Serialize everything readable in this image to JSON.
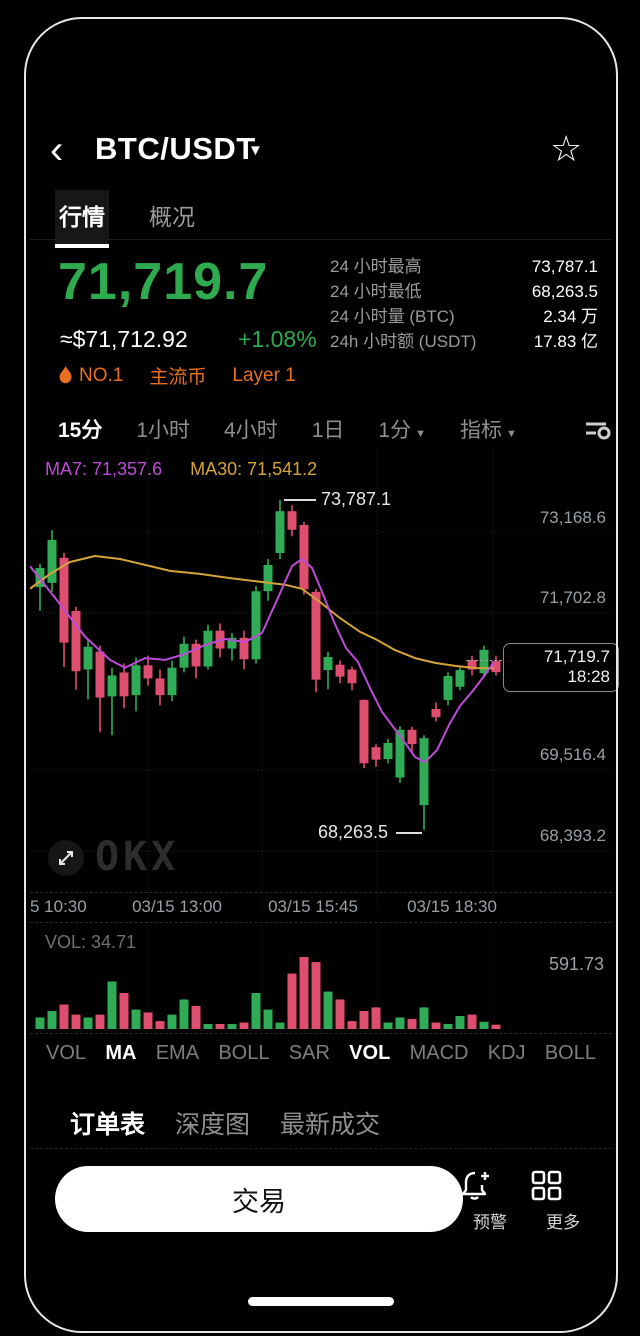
{
  "header": {
    "back_icon": "‹",
    "title": "BTC/USDT",
    "dropdown_icon": "▼",
    "star_icon": "☆"
  },
  "tabs": [
    {
      "label": "行情",
      "active": true
    },
    {
      "label": "概况",
      "active": false
    }
  ],
  "price": {
    "last": "71,719.7",
    "approx_usd": "≈$71,712.92",
    "change_pct": "+1.08%"
  },
  "stats": [
    {
      "label": "24 小时最高",
      "value": "73,787.1"
    },
    {
      "label": "24 小时最低",
      "value": "68,263.5"
    },
    {
      "label": "24 小时量 (BTC)",
      "value": "2.34 万"
    },
    {
      "label": "24h 小时额 (USDT)",
      "value": "17.83 亿"
    }
  ],
  "badges": [
    {
      "label": "NO.1"
    },
    {
      "label": "主流币"
    },
    {
      "label": "Layer 1"
    }
  ],
  "timeframes": [
    {
      "label": "15分",
      "active": true
    },
    {
      "label": "1小时",
      "active": false
    },
    {
      "label": "4小时",
      "active": false
    },
    {
      "label": "1日",
      "active": false
    },
    {
      "label": "1分",
      "active": false,
      "caret": true
    },
    {
      "label": "指标",
      "active": false,
      "caret": true
    }
  ],
  "chart_data": {
    "type": "candlestick",
    "interval": "15分",
    "ma7_label": "MA7: 71,357.6",
    "ma30_label": "MA30: 71,541.2",
    "high_annotation": "73,787.1",
    "low_annotation": "68,263.5",
    "price_tag": {
      "price": "71,719.7",
      "time": "18:28"
    },
    "y_ticks": [
      "73,168.6",
      "71,702.8",
      "69,516.4",
      "68,393.2"
    ],
    "x_ticks": [
      "5 10:30",
      "03/15 13:00",
      "03/15 15:45",
      "03/15 18:30"
    ],
    "watermark": "OKX",
    "colors": {
      "up": "#2FAC55",
      "down": "#DE4E6E",
      "ma7": "#BD4BD8",
      "ma30": "#D6A339",
      "grid": "#262b3a",
      "price_text": "#2EAB4F"
    },
    "y_map": {
      "p_ref": 73787.1,
      "y_ref": 50,
      "ppx": 16.74
    },
    "grid": {
      "vx": [
        118,
        232,
        347,
        463
      ],
      "hy": [
        82,
        163,
        320,
        401
      ]
    },
    "candles": [
      [
        72330,
        72720,
        71930,
        72650
      ],
      [
        72400,
        73280,
        72250,
        73120
      ],
      [
        72820,
        72900,
        70990,
        71400
      ],
      [
        71930,
        72000,
        70610,
        70920
      ],
      [
        70950,
        71450,
        70450,
        71330
      ],
      [
        71250,
        71350,
        69900,
        70480
      ],
      [
        70500,
        70980,
        69850,
        70850
      ],
      [
        70900,
        71050,
        70300,
        70500
      ],
      [
        70520,
        71150,
        70250,
        71020
      ],
      [
        71020,
        71180,
        70680,
        70800
      ],
      [
        70800,
        70950,
        70350,
        70520
      ],
      [
        70520,
        71100,
        70420,
        70980
      ],
      [
        70980,
        71500,
        70900,
        71380
      ],
      [
        71380,
        71450,
        70800,
        71000
      ],
      [
        71000,
        71700,
        70950,
        71600
      ],
      [
        71600,
        71720,
        71150,
        71300
      ],
      [
        71300,
        71560,
        71100,
        71480
      ],
      [
        71480,
        71600,
        70950,
        71120
      ],
      [
        71120,
        72350,
        71050,
        72260
      ],
      [
        72260,
        72800,
        72100,
        72700
      ],
      [
        72900,
        73787.1,
        72800,
        73600
      ],
      [
        73600,
        73700,
        73180,
        73290
      ],
      [
        73370,
        73420,
        72200,
        72290
      ],
      [
        72250,
        72300,
        70570,
        70780
      ],
      [
        70940,
        71250,
        70620,
        71160
      ],
      [
        71030,
        71100,
        70720,
        70830
      ],
      [
        70950,
        71000,
        70600,
        70720
      ],
      [
        70440,
        70450,
        69300,
        69380
      ],
      [
        69650,
        69700,
        69320,
        69440
      ],
      [
        69450,
        69790,
        69380,
        69720
      ],
      [
        69140,
        70000,
        69050,
        69940
      ],
      [
        69940,
        69990,
        69550,
        69700
      ],
      [
        68680,
        69850,
        68263.5,
        69800
      ],
      [
        70290,
        70400,
        70080,
        70150
      ],
      [
        70440,
        70900,
        70350,
        70840
      ],
      [
        70660,
        71000,
        70600,
        70940
      ],
      [
        71110,
        71180,
        70850,
        70950
      ],
      [
        70890,
        71350,
        70820,
        71280
      ],
      [
        71090,
        71180,
        70850,
        70905
      ]
    ],
    "ma7": [
      [
        0,
        72680
      ],
      [
        25,
        72150
      ],
      [
        55,
        71500
      ],
      [
        80,
        71110
      ],
      [
        95,
        70980
      ],
      [
        115,
        71140
      ],
      [
        135,
        71110
      ],
      [
        155,
        71210
      ],
      [
        175,
        71360
      ],
      [
        195,
        71460
      ],
      [
        215,
        71410
      ],
      [
        232,
        71560
      ],
      [
        248,
        72150
      ],
      [
        262,
        72680
      ],
      [
        272,
        72800
      ],
      [
        282,
        72650
      ],
      [
        292,
        72250
      ],
      [
        304,
        71745
      ],
      [
        316,
        71310
      ],
      [
        328,
        71075
      ],
      [
        340,
        70640
      ],
      [
        352,
        70240
      ],
      [
        364,
        69970
      ],
      [
        376,
        69700
      ],
      [
        385,
        69485
      ],
      [
        395,
        69400
      ],
      [
        407,
        69600
      ],
      [
        419,
        70020
      ],
      [
        430,
        70340
      ],
      [
        442,
        70575
      ],
      [
        455,
        70860
      ],
      [
        464,
        71080
      ]
    ],
    "ma30": [
      [
        0,
        72300
      ],
      [
        20,
        72550
      ],
      [
        40,
        72750
      ],
      [
        65,
        72850
      ],
      [
        90,
        72800
      ],
      [
        115,
        72700
      ],
      [
        140,
        72600
      ],
      [
        170,
        72550
      ],
      [
        200,
        72480
      ],
      [
        230,
        72420
      ],
      [
        255,
        72370
      ],
      [
        272,
        72300
      ],
      [
        290,
        72080
      ],
      [
        310,
        71810
      ],
      [
        330,
        71580
      ],
      [
        347,
        71445
      ],
      [
        365,
        71275
      ],
      [
        385,
        71140
      ],
      [
        405,
        71060
      ],
      [
        425,
        71010
      ],
      [
        445,
        70975
      ],
      [
        464,
        70968
      ]
    ],
    "volume": {
      "label": "VOL: 34.71",
      "max_label": "591.73",
      "values": [
        0.16,
        0.25,
        0.34,
        0.2,
        0.16,
        0.2,
        0.66,
        0.5,
        0.27,
        0.23,
        0.11,
        0.2,
        0.41,
        0.32,
        0.07,
        0.07,
        0.07,
        0.09,
        0.5,
        0.27,
        0.09,
        0.77,
        1.0,
        0.93,
        0.52,
        0.41,
        0.11,
        0.25,
        0.3,
        0.09,
        0.16,
        0.14,
        0.3,
        0.09,
        0.07,
        0.18,
        0.2,
        0.1,
        0.06
      ]
    }
  },
  "indicators": [
    {
      "label": "VOL",
      "active": false
    },
    {
      "label": "MA",
      "active": true
    },
    {
      "label": "EMA",
      "active": false
    },
    {
      "label": "BOLL",
      "active": false
    },
    {
      "label": "SAR",
      "active": false
    },
    {
      "label": "VOL",
      "active": true
    },
    {
      "label": "MACD",
      "active": false
    },
    {
      "label": "KDJ",
      "active": false
    },
    {
      "label": "BOLL",
      "active": false
    }
  ],
  "bottom_tabs": [
    {
      "label": "订单表",
      "active": true
    },
    {
      "label": "深度图",
      "active": false
    },
    {
      "label": "最新成交",
      "active": false
    }
  ],
  "actions": {
    "trade": "交易",
    "alert": "预警",
    "more": "更多"
  }
}
